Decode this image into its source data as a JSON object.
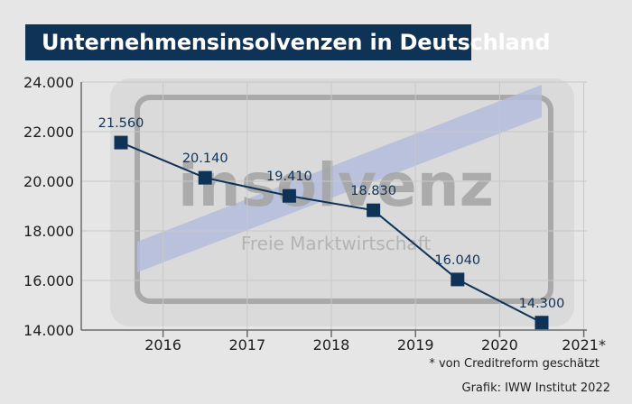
{
  "chart_data": {
    "type": "line",
    "title": "Unternehmensinsolvenzen in Deutschland",
    "categories": [
      "2016",
      "2017",
      "2018",
      "2019",
      "2020",
      "2021*"
    ],
    "values": [
      21560,
      20140,
      19410,
      18830,
      16040,
      14300
    ],
    "value_labels": [
      "21.560",
      "20.140",
      "19.410",
      "18.830",
      "16.040",
      "14.300"
    ],
    "yticks": [
      "14.000",
      "16.000",
      "18.000",
      "20.000",
      "22.000",
      "24.000"
    ],
    "ytick_values": [
      14000,
      16000,
      18000,
      20000,
      22000,
      24000
    ],
    "ylim": [
      14000,
      24000
    ],
    "grid": true,
    "xlabel": "",
    "ylabel": "",
    "colors": {
      "line": "#0f3357",
      "marker": "#0f3357",
      "label": "#0f3357",
      "title_bg": "#0f3357"
    }
  },
  "watermark": {
    "word": "insolvenz",
    "subtitle": "Freie Marktwirtschaft"
  },
  "footnote": "* von Creditreform geschätzt",
  "credit": "Grafik: IWW Institut 2022"
}
